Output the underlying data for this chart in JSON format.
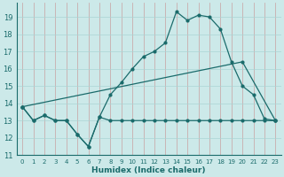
{
  "xlabel": "Humidex (Indice chaleur)",
  "xlim": [
    -0.5,
    23.5
  ],
  "ylim": [
    11,
    19.8
  ],
  "yticks": [
    11,
    12,
    13,
    14,
    15,
    16,
    17,
    18,
    19
  ],
  "xticks": [
    0,
    1,
    2,
    3,
    4,
    5,
    6,
    7,
    8,
    9,
    10,
    11,
    12,
    13,
    14,
    15,
    16,
    17,
    18,
    19,
    20,
    21,
    22,
    23
  ],
  "bg_color": "#cce9e9",
  "grid_color": "#aad4d4",
  "line_color": "#1a6b6b",
  "line1_x": [
    0,
    1,
    2,
    3,
    4,
    5,
    6,
    7,
    8,
    9,
    10,
    11,
    12,
    13,
    14,
    15,
    16,
    17,
    18,
    19,
    20,
    21,
    22,
    23
  ],
  "line1_y": [
    13.8,
    13.0,
    13.3,
    13.0,
    13.0,
    12.2,
    11.5,
    13.2,
    13.0,
    13.0,
    13.0,
    13.0,
    13.0,
    13.0,
    13.0,
    13.0,
    13.0,
    13.0,
    13.0,
    13.0,
    13.0,
    13.0,
    13.0,
    13.0
  ],
  "line2_x": [
    0,
    1,
    2,
    3,
    4,
    5,
    6,
    7,
    8,
    9,
    10,
    11,
    12,
    13,
    14,
    15,
    16,
    17,
    18,
    19,
    20,
    21,
    22,
    23
  ],
  "line2_y": [
    13.8,
    13.0,
    13.3,
    13.0,
    13.0,
    12.2,
    11.5,
    13.2,
    14.5,
    15.2,
    16.0,
    16.7,
    17.0,
    17.5,
    19.3,
    18.8,
    19.1,
    19.0,
    18.3,
    16.4,
    15.0,
    14.5,
    13.1,
    13.0
  ],
  "line3_x": [
    0,
    20,
    23
  ],
  "line3_y": [
    13.8,
    16.4,
    13.0
  ]
}
